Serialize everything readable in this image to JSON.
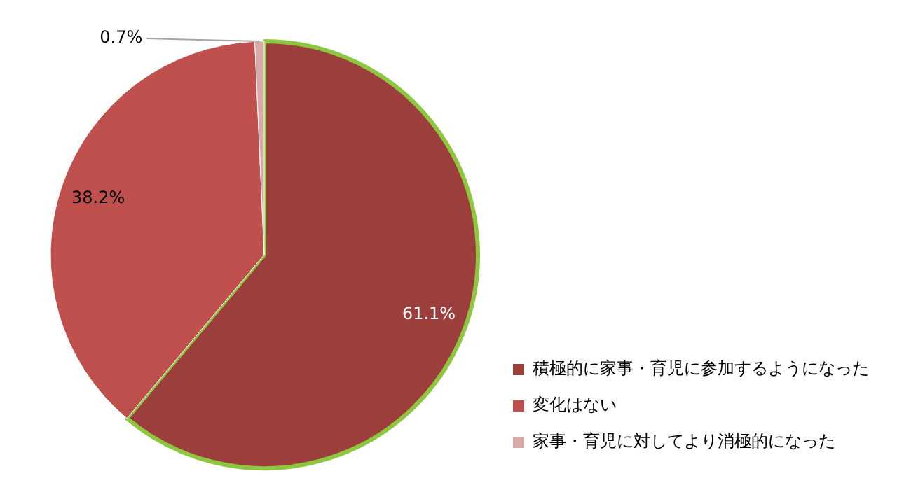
{
  "chart_data": {
    "type": "pie",
    "categories": [
      "積極的に家事・育児に参加するようになった",
      "変化はない",
      "家事・育児に対してより消極的になった"
    ],
    "values": [
      61.1,
      38.2,
      0.7
    ],
    "colors": [
      "#9b3e3c",
      "#c0504d",
      "#d9a9a8"
    ],
    "value_labels": [
      "61.1%",
      "38.2%",
      "0.7%"
    ],
    "legend": "bottom right"
  }
}
